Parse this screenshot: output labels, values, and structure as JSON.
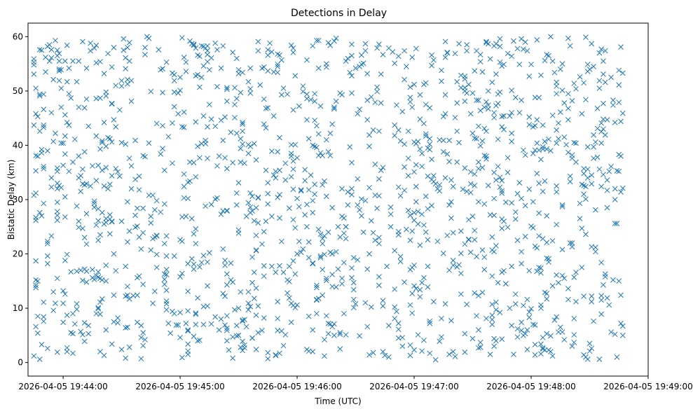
{
  "chart_data": {
    "type": "scatter",
    "title": "Detections in Delay",
    "xlabel": "Time (UTC)",
    "ylabel": "Bistatic Delay (km)",
    "x_ticks": [
      "2026-04-05 19:44:00",
      "2026-04-05 19:45:00",
      "2026-04-05 19:46:00",
      "2026-04-05 19:47:00",
      "2026-04-05 19:48:00",
      "2026-04-05 19:49:00"
    ],
    "y_ticks": [
      0,
      10,
      20,
      30,
      40,
      50,
      60
    ],
    "xlim": [
      "2026-04-05 19:43:42",
      "2026-04-05 19:49:00"
    ],
    "ylim": [
      -2.5,
      62.5
    ],
    "x_range": [
      "2026-04-05 19:43:45",
      "2026-04-05 19:48:48"
    ],
    "y_range": [
      0.5,
      60
    ],
    "point_count": 1500,
    "marker": "x",
    "color": "#1f77b4",
    "grid": false,
    "points": []
  }
}
